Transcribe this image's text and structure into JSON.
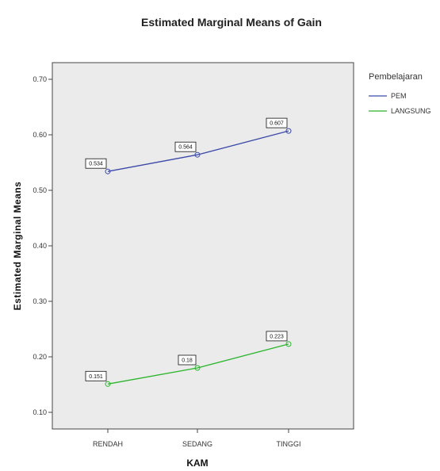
{
  "chart_data": {
    "type": "line",
    "title": "Estimated Marginal Means of Gain",
    "xlabel": "KAM",
    "ylabel": "Estimated Marginal Means",
    "categories": [
      "RENDAH",
      "SEDANG",
      "TINGGI"
    ],
    "ylim": [
      0.08,
      0.72
    ],
    "yticks": [
      "0.10",
      "0.20",
      "0.30",
      "0.40",
      "0.50",
      "0.60",
      "0.70"
    ],
    "grid": false,
    "legend": {
      "title": "Pembelajaran",
      "placement": "right"
    },
    "background_color": "#ebebeb",
    "series": [
      {
        "name": "PEM",
        "color": "#3b4aa8",
        "values": [
          0.534,
          0.564,
          0.607
        ],
        "labels": [
          "0.534",
          "0.564",
          "0.607"
        ]
      },
      {
        "name": "LANGSUNG",
        "color": "#2bb52b",
        "values": [
          0.151,
          0.18,
          0.223
        ],
        "labels": [
          "0.151",
          "0.18",
          "0.223"
        ]
      }
    ]
  }
}
